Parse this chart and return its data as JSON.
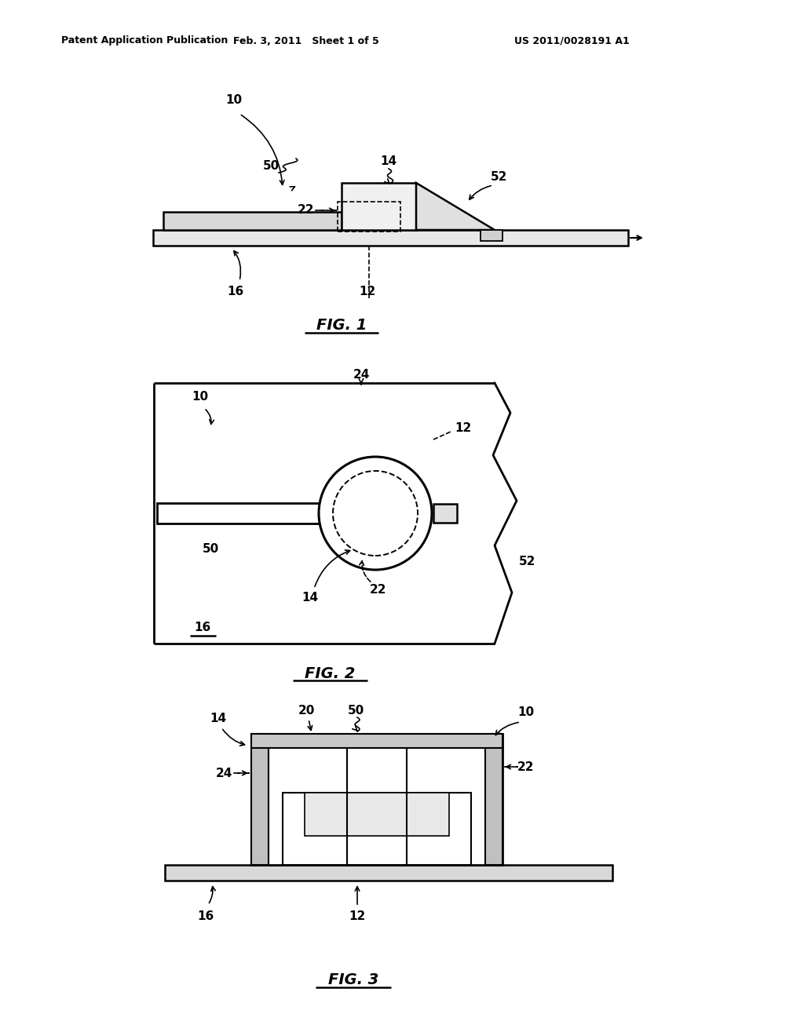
{
  "bg_color": "#ffffff",
  "line_color": "#000000",
  "header_left": "Patent Application Publication",
  "header_center": "Feb. 3, 2011   Sheet 1 of 5",
  "header_right": "US 2011/0028191 A1"
}
